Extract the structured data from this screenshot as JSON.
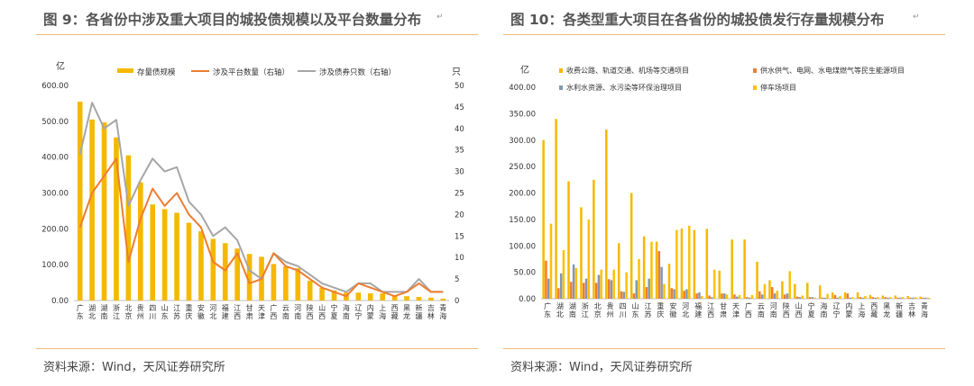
{
  "colors": {
    "bar_gold": "#f5b800",
    "line_orange": "#ed7d31",
    "line_gray": "#a6a6a6",
    "bar_blue_gray": "#8497b0",
    "bar_light": "#ffc000"
  },
  "fig9": {
    "title": "图 9：各省份中涉及重大项目的城投债规模以及平台数量分布",
    "source": "资料来源：Wind，天风证券研究所",
    "para_mark": "↵"
  },
  "fig10": {
    "title": "图 10：各类型重大项目在各省份的城投债发行存量规模分布",
    "source": "资料来源：Wind，天风证券研究所",
    "para_mark": "↵"
  },
  "chart_data": [
    {
      "type": "bar",
      "title": "图 9：各省份中涉及重大项目的城投债规模以及平台数量分布",
      "ylabel": "亿",
      "y2label": "只",
      "ylim": [
        0,
        600
      ],
      "y2lim": [
        0,
        50
      ],
      "yticks": [
        "0.00",
        "100.00",
        "200.00",
        "300.00",
        "400.00",
        "500.00",
        "600.00"
      ],
      "y2ticks": [
        "0",
        "5",
        "10",
        "15",
        "20",
        "25",
        "30",
        "35",
        "40",
        "45",
        "50"
      ],
      "categories": [
        "广东",
        "湖北",
        "湖南",
        "浙江",
        "北京",
        "贵州",
        "四川",
        "山东",
        "江苏",
        "重庆",
        "安徽",
        "河北",
        "福建",
        "江西",
        "甘肃",
        "天津",
        "广西",
        "云南",
        "河南",
        "陕西",
        "山西",
        "宁夏",
        "海南",
        "辽宁",
        "内蒙",
        "上海",
        "西藏",
        "黑龙",
        "新疆",
        "吉林",
        "青海"
      ],
      "series": [
        {
          "name": "存量债规模",
          "kind": "bar",
          "axis": "left",
          "values": [
            555,
            505,
            497,
            455,
            405,
            330,
            268,
            255,
            245,
            217,
            193,
            172,
            160,
            145,
            130,
            122,
            102,
            95,
            90,
            55,
            35,
            28,
            22,
            22,
            20,
            20,
            15,
            12,
            10,
            8,
            5
          ]
        },
        {
          "name": "涉及平台数量（右轴）",
          "kind": "line",
          "axis": "right",
          "values": [
            17,
            25,
            29,
            33,
            9,
            19,
            26,
            22,
            25,
            20,
            17,
            9,
            7,
            11,
            4,
            5,
            11,
            8,
            7,
            5,
            3,
            2,
            1,
            4,
            3,
            2,
            1,
            2,
            4,
            2,
            2
          ]
        },
        {
          "name": "涉及债券只数（右轴）",
          "kind": "line",
          "axis": "right",
          "values": [
            34,
            46,
            40,
            42,
            22,
            28,
            33,
            30,
            31,
            23,
            20,
            15,
            17,
            14,
            7,
            5,
            11,
            9,
            8,
            6,
            4,
            3,
            2,
            4,
            4,
            2,
            2,
            2,
            5,
            2,
            2
          ]
        }
      ]
    },
    {
      "type": "bar",
      "title": "图 10：各类型重大项目在各省份的城投债发行存量规模分布",
      "ylabel": "亿",
      "ylim": [
        0,
        400
      ],
      "yticks": [
        "0.00",
        "50.00",
        "100.00",
        "150.00",
        "200.00",
        "250.00",
        "300.00",
        "350.00",
        "400.00"
      ],
      "categories": [
        "广东",
        "湖北",
        "湖南",
        "浙江",
        "北京",
        "贵州",
        "四川",
        "山东",
        "江苏",
        "重庆",
        "安徽",
        "河北",
        "福建",
        "江西",
        "甘肃",
        "天津",
        "广西",
        "云南",
        "河南",
        "陕西",
        "山西",
        "宁夏",
        "海南",
        "辽宁",
        "内蒙",
        "上海",
        "西藏",
        "黑龙",
        "新疆",
        "吉林",
        "青海"
      ],
      "series": [
        {
          "name": "收费公路、轨道交通、机场等交通项目",
          "values": [
            300,
            340,
            222,
            173,
            225,
            320,
            105,
            200,
            118,
            108,
            66,
            133,
            130,
            132,
            53,
            112,
            112,
            70,
            35,
            33,
            28,
            30,
            25,
            12,
            12,
            12,
            7,
            6,
            6,
            5,
            4
          ]
        },
        {
          "name": "供水供气、电网、水电煤燃气等民生能源项目",
          "values": [
            72,
            20,
            32,
            30,
            30,
            37,
            14,
            10,
            22,
            90,
            20,
            15,
            10,
            6,
            10,
            8,
            3,
            14,
            22,
            8,
            4,
            3,
            2,
            7,
            10,
            3,
            3,
            3,
            2,
            2,
            2
          ]
        },
        {
          "name": "水利水资源、水污染等环保治理项目",
          "values": [
            38,
            48,
            65,
            38,
            45,
            35,
            13,
            35,
            38,
            60,
            18,
            18,
            12,
            3,
            10,
            4,
            2,
            8,
            10,
            10,
            3,
            3,
            2,
            2,
            2,
            2,
            2,
            2,
            2,
            2,
            2
          ]
        },
        {
          "name": "停车场项目",
          "values": [
            142,
            92,
            58,
            150,
            55,
            55,
            50,
            75,
            108,
            28,
            130,
            138,
            5,
            55,
            8,
            7,
            7,
            28,
            15,
            52,
            6,
            2,
            9,
            5,
            3,
            5,
            3,
            3,
            3,
            3,
            2
          ]
        }
      ]
    }
  ]
}
